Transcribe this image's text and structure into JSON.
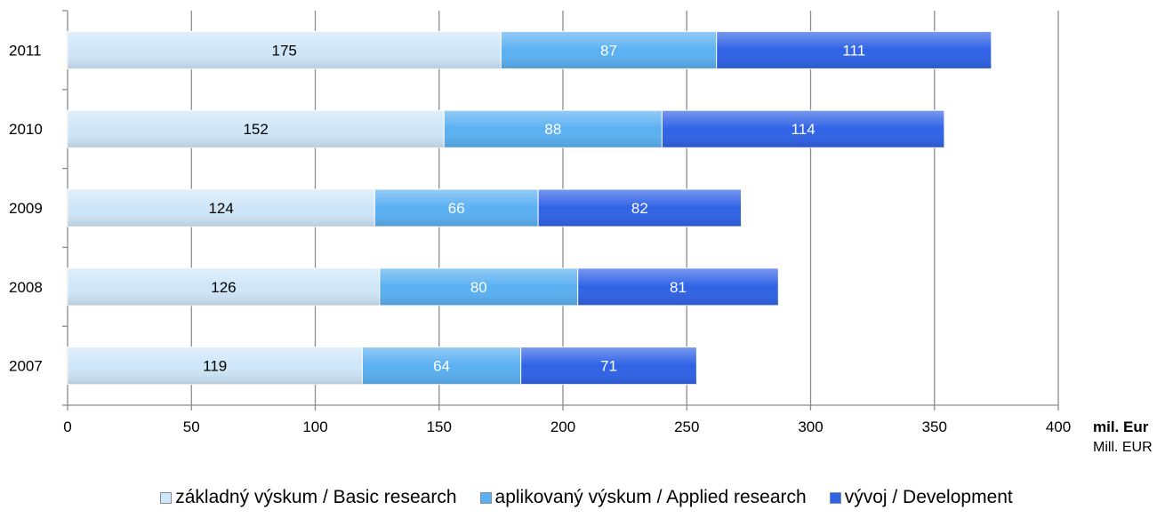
{
  "chart_data": {
    "type": "bar",
    "orientation": "horizontal",
    "stacked": true,
    "categories": [
      "2011",
      "2010",
      "2009",
      "2008",
      "2007"
    ],
    "series": [
      {
        "name": "základný výskum / Basic research",
        "values": [
          175,
          152,
          124,
          126,
          119
        ],
        "color": "#cfe6f8",
        "label_color": "#000000"
      },
      {
        "name": "aplikovaný výskum / Applied research",
        "values": [
          87,
          88,
          66,
          80,
          64
        ],
        "color": "#5ab0f2",
        "label_color": "#ffffff"
      },
      {
        "name": "vývoj / Development",
        "values": [
          111,
          114,
          82,
          81,
          71
        ],
        "color": "#2f62e6",
        "label_color": "#ffffff"
      }
    ],
    "xlim": [
      0,
      400
    ],
    "xticks": [
      0,
      50,
      100,
      150,
      200,
      250,
      300,
      350,
      400
    ],
    "xlabel_line1": "mil. Eur",
    "xlabel_line2": "Mill. EUR",
    "grid": true,
    "legend_position": "bottom"
  }
}
